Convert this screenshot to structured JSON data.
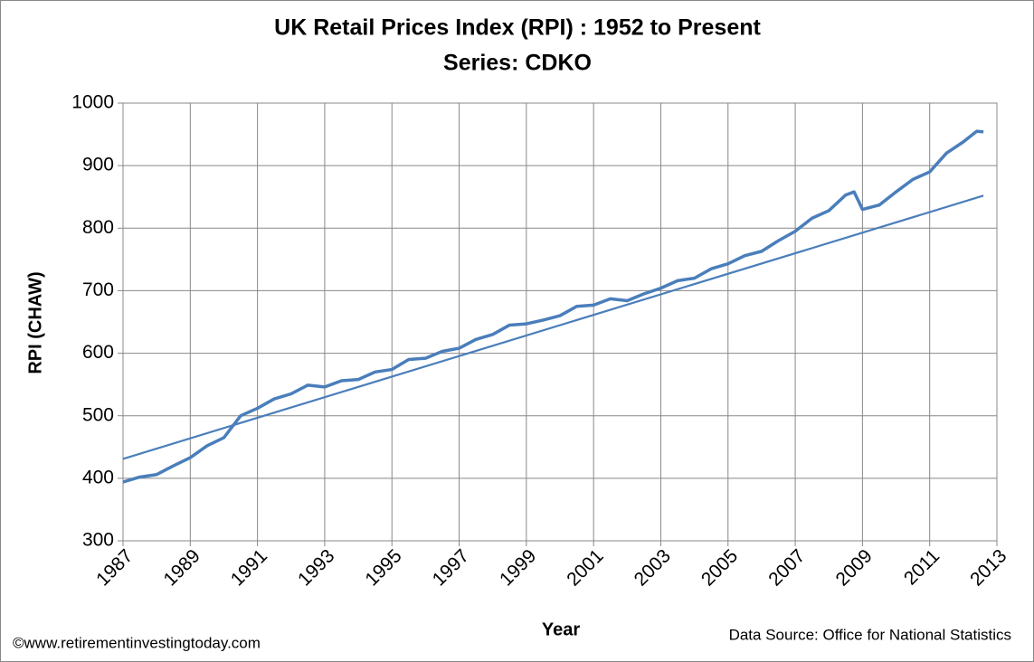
{
  "chart_data": {
    "type": "line",
    "title": "UK Retail Prices Index (RPI) : 1952 to Present",
    "subtitle": "Series: CDKO",
    "xlabel": "Year",
    "ylabel": "RPI (CHAW)",
    "annotations": [
      "©www.retirementinvestingtoday.com",
      "Data Source: Office for National Statistics"
    ],
    "xlim": [
      1987,
      2013
    ],
    "xticks": [
      1987,
      1989,
      1991,
      1993,
      1995,
      1997,
      1999,
      2001,
      2003,
      2005,
      2007,
      2009,
      2011,
      2013
    ],
    "ylim": [
      300,
      1000
    ],
    "yticks": [
      300,
      400,
      500,
      600,
      700,
      800,
      900,
      1000
    ],
    "grid": true,
    "series": [
      {
        "color": "#4a7ebb",
        "width": 3.5,
        "x": [
          1987.0,
          1987.5,
          1988.0,
          1988.5,
          1989.0,
          1989.5,
          1990.0,
          1990.5,
          1991.0,
          1991.5,
          1992.0,
          1992.5,
          1993.0,
          1993.5,
          1994.0,
          1994.5,
          1995.0,
          1995.5,
          1996.0,
          1996.5,
          1997.0,
          1997.5,
          1998.0,
          1998.5,
          1999.0,
          1999.5,
          2000.0,
          2000.5,
          2001.0,
          2001.5,
          2002.0,
          2002.5,
          2003.0,
          2003.5,
          2004.0,
          2004.5,
          2005.0,
          2005.5,
          2006.0,
          2006.5,
          2007.0,
          2007.5,
          2008.0,
          2008.5,
          2008.75,
          2009.0,
          2009.5,
          2010.0,
          2010.5,
          2011.0,
          2011.5,
          2012.0,
          2012.4,
          2012.6
        ],
        "values": [
          394,
          402,
          406,
          420,
          433,
          452,
          465,
          500,
          512,
          527,
          535,
          549,
          546,
          556,
          558,
          570,
          574,
          590,
          592,
          603,
          608,
          622,
          630,
          645,
          647,
          653,
          660,
          675,
          677,
          687,
          684,
          695,
          704,
          716,
          720,
          735,
          743,
          756,
          763,
          780,
          795,
          816,
          828,
          853,
          858,
          830,
          837,
          858,
          878,
          890,
          920,
          938,
          955,
          954
        ]
      },
      {
        "color": "#4a7ebb",
        "width": 2.2,
        "x": [
          1987.0,
          2012.6
        ],
        "values": [
          431,
          852
        ]
      }
    ]
  }
}
